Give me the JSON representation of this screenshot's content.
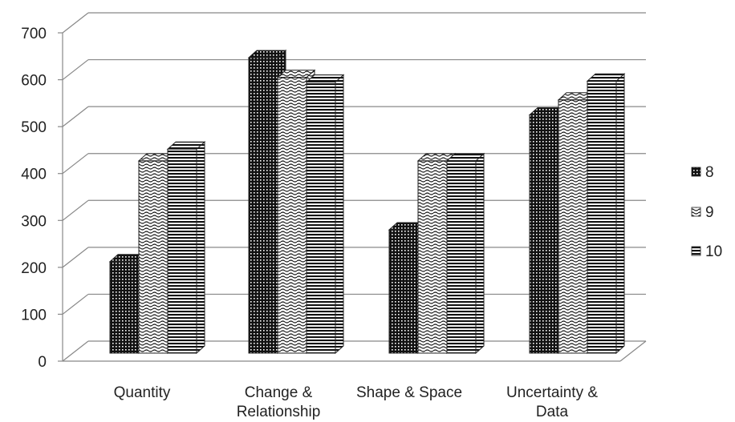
{
  "chart_data": {
    "type": "bar",
    "style": "3d-clustered-column",
    "categories": [
      "Quantity",
      "Change & Relationship",
      "Shape & Space",
      "Uncertainty & Data"
    ],
    "series": [
      {
        "name": "8",
        "values": [
          195,
          630,
          263,
          508
        ]
      },
      {
        "name": "9",
        "values": [
          410,
          588,
          410,
          540
        ]
      },
      {
        "name": "10",
        "values": [
          435,
          578,
          410,
          580
        ]
      }
    ],
    "yticks": [
      0,
      100,
      200,
      300,
      400,
      500,
      600,
      700
    ],
    "ylim": [
      0,
      700
    ],
    "grid": true,
    "legend": "right"
  }
}
